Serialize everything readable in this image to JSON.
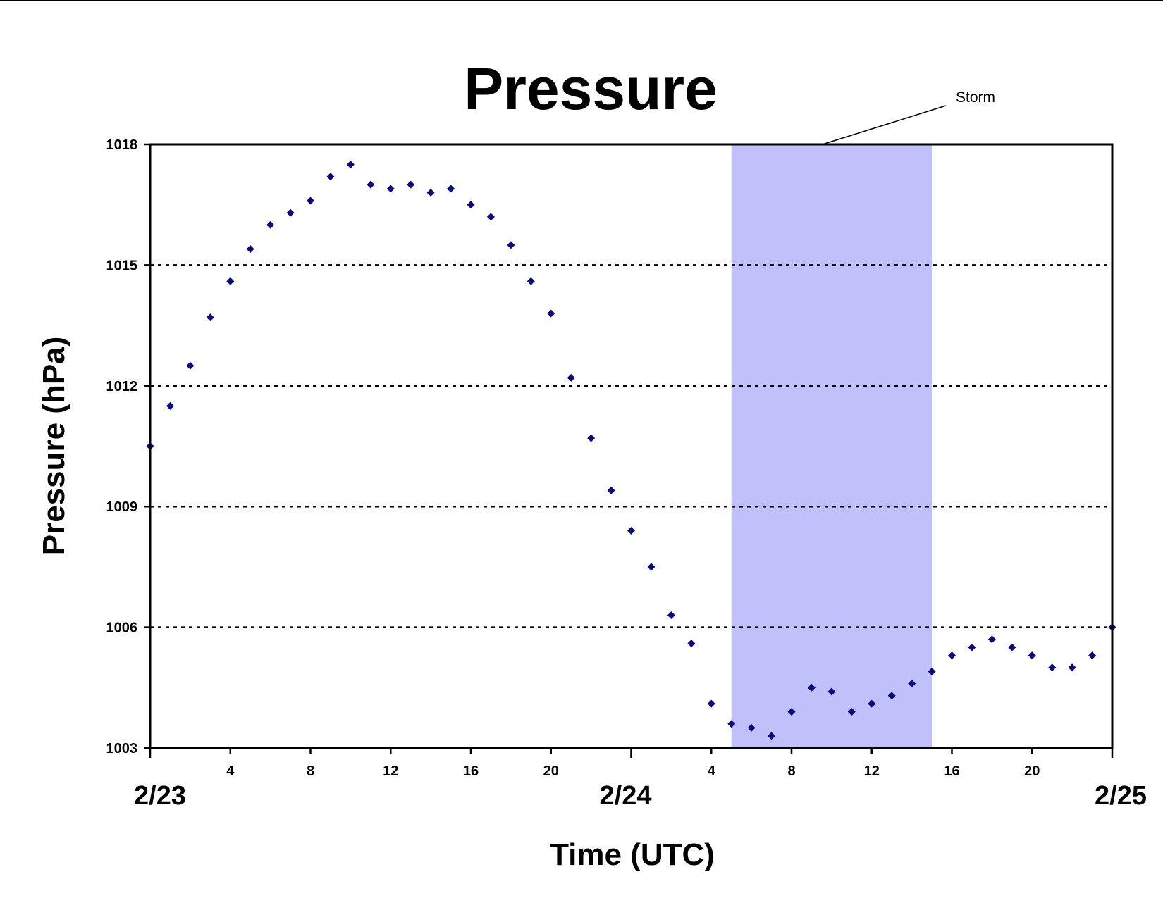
{
  "chart_data": {
    "type": "scatter",
    "title": "Pressure",
    "xlabel": "Time (UTC)",
    "ylabel": "Pressure (hPa)",
    "ylim": [
      1003,
      1018
    ],
    "yticks": [
      "1003",
      "1006",
      "1009",
      "1012",
      "1015",
      "1018"
    ],
    "xlim": [
      "2/23 00",
      "2/25 00"
    ],
    "hour_ticks": [
      "4",
      "8",
      "12",
      "16",
      "20",
      "4",
      "8",
      "12",
      "16",
      "20"
    ],
    "day_labels": [
      "2/23",
      "2/24",
      "2/25"
    ],
    "grid": "horizontal dotted at 1006, 1009, 1012, 1015",
    "marker_color": "#0a0a80",
    "storm_band": {
      "label": "Storm",
      "start": "2/24 05",
      "end": "2/24 15",
      "color": "#c0c0fa"
    },
    "series": [
      {
        "x_units": "hours after 2/23 00 UTC",
        "points": [
          [
            0,
            1010.5
          ],
          [
            1,
            1011.5
          ],
          [
            2,
            1012.5
          ],
          [
            3,
            1013.7
          ],
          [
            4,
            1014.6
          ],
          [
            5,
            1015.4
          ],
          [
            6,
            1016.0
          ],
          [
            7,
            1016.3
          ],
          [
            8,
            1016.6
          ],
          [
            9,
            1017.2
          ],
          [
            10,
            1017.5
          ],
          [
            11,
            1017.0
          ],
          [
            12,
            1016.9
          ],
          [
            13,
            1017.0
          ],
          [
            14,
            1016.8
          ],
          [
            15,
            1016.9
          ],
          [
            16,
            1016.5
          ],
          [
            17,
            1016.2
          ],
          [
            18,
            1015.5
          ],
          [
            19,
            1014.6
          ],
          [
            20,
            1013.8
          ],
          [
            21,
            1012.2
          ],
          [
            22,
            1010.7
          ],
          [
            23,
            1009.4
          ],
          [
            24,
            1008.4
          ],
          [
            25,
            1007.5
          ],
          [
            26,
            1006.3
          ],
          [
            27,
            1005.6
          ],
          [
            28,
            1004.1
          ],
          [
            29,
            1003.6
          ],
          [
            30,
            1003.5
          ],
          [
            31,
            1003.3
          ],
          [
            32,
            1003.9
          ],
          [
            33,
            1004.5
          ],
          [
            34,
            1004.4
          ],
          [
            35,
            1003.9
          ],
          [
            36,
            1004.1
          ],
          [
            37,
            1004.3
          ],
          [
            38,
            1004.6
          ],
          [
            39,
            1004.9
          ],
          [
            40,
            1005.3
          ],
          [
            41,
            1005.5
          ],
          [
            42,
            1005.7
          ],
          [
            43,
            1005.5
          ],
          [
            44,
            1005.3
          ],
          [
            45,
            1005.0
          ],
          [
            46,
            1005.0
          ],
          [
            47,
            1005.3
          ],
          [
            48,
            1006.0
          ]
        ]
      }
    ]
  }
}
